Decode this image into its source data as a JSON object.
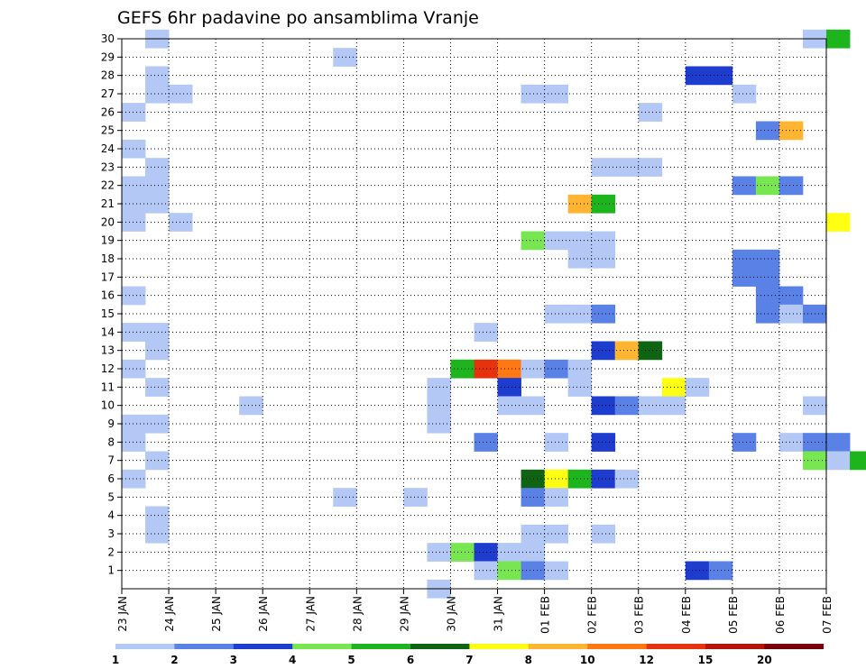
{
  "chart_data": {
    "type": "heatmap",
    "title": "GEFS 6hr padavine po ansamblima Vranje",
    "y_range": [
      0,
      30
    ],
    "y_ticks": [
      1,
      2,
      3,
      4,
      5,
      6,
      7,
      8,
      9,
      10,
      11,
      12,
      13,
      14,
      15,
      16,
      17,
      18,
      19,
      20,
      21,
      22,
      23,
      24,
      25,
      26,
      27,
      28,
      29,
      30
    ],
    "x_range_days": [
      0,
      15
    ],
    "x_ticks": [
      "23 JAN",
      "24 JAN",
      "25 JAN",
      "26 JAN",
      "27 JAN",
      "28 JAN",
      "29 JAN",
      "30 JAN",
      "31 JAN",
      "01 FEB",
      "02 FEB",
      "03 FEB",
      "04 FEB",
      "05 FEB",
      "06 FEB",
      "07 FEB"
    ],
    "grid": true,
    "legend_position": "bottom",
    "levels": [
      {
        "label": "1",
        "color": "#b4c8f5"
      },
      {
        "label": "2",
        "color": "#5a82e6"
      },
      {
        "label": "3",
        "color": "#1e3ccd"
      },
      {
        "label": "4",
        "color": "#78e650"
      },
      {
        "label": "5",
        "color": "#1eb41e"
      },
      {
        "label": "6",
        "color": "#0f6414"
      },
      {
        "label": "7",
        "color": "#ffff14"
      },
      {
        "label": "8",
        "color": "#ffb432"
      },
      {
        "label": "10",
        "color": "#ff7814"
      },
      {
        "label": "12",
        "color": "#e6320f"
      },
      {
        "label": "15",
        "color": "#b4140a"
      },
      {
        "label": "20",
        "color": "#78000a"
      }
    ],
    "cells": [
      [
        30,
        1,
        0
      ],
      [
        30,
        29,
        0
      ],
      [
        30,
        30,
        4
      ],
      [
        29,
        9,
        0
      ],
      [
        28,
        24,
        2
      ],
      [
        28,
        25,
        2
      ],
      [
        28,
        1,
        0
      ],
      [
        27,
        1,
        0
      ],
      [
        27,
        2,
        0
      ],
      [
        27,
        17,
        0
      ],
      [
        27,
        18,
        0
      ],
      [
        27,
        26,
        0
      ],
      [
        26,
        0,
        0
      ],
      [
        26,
        22,
        0
      ],
      [
        25,
        27,
        1
      ],
      [
        25,
        28,
        7
      ],
      [
        24,
        0,
        0
      ],
      [
        23,
        1,
        0
      ],
      [
        23,
        20,
        0
      ],
      [
        23,
        21,
        0
      ],
      [
        23,
        22,
        0
      ],
      [
        22,
        0,
        0
      ],
      [
        22,
        1,
        0
      ],
      [
        22,
        26,
        1
      ],
      [
        22,
        27,
        3
      ],
      [
        22,
        28,
        1
      ],
      [
        21,
        0,
        0
      ],
      [
        21,
        1,
        0
      ],
      [
        21,
        19,
        7
      ],
      [
        21,
        20,
        4
      ],
      [
        20,
        0,
        0
      ],
      [
        20,
        2,
        0
      ],
      [
        20,
        30,
        6
      ],
      [
        19,
        17,
        3
      ],
      [
        19,
        18,
        0
      ],
      [
        19,
        19,
        0
      ],
      [
        19,
        20,
        0
      ],
      [
        18,
        19,
        0
      ],
      [
        18,
        20,
        0
      ],
      [
        18,
        26,
        1
      ],
      [
        18,
        27,
        1
      ],
      [
        17,
        26,
        1
      ],
      [
        17,
        27,
        1
      ],
      [
        16,
        0,
        0
      ],
      [
        16,
        27,
        1
      ],
      [
        16,
        28,
        1
      ],
      [
        15,
        18,
        0
      ],
      [
        15,
        19,
        0
      ],
      [
        15,
        20,
        1
      ],
      [
        15,
        27,
        1
      ],
      [
        15,
        28,
        0
      ],
      [
        15,
        29,
        1
      ],
      [
        14,
        0,
        0
      ],
      [
        14,
        1,
        0
      ],
      [
        14,
        15,
        0
      ],
      [
        13,
        1,
        0
      ],
      [
        13,
        20,
        2
      ],
      [
        13,
        21,
        7
      ],
      [
        13,
        22,
        5
      ],
      [
        12,
        0,
        0
      ],
      [
        12,
        14,
        4
      ],
      [
        12,
        15,
        9
      ],
      [
        12,
        16,
        8
      ],
      [
        12,
        17,
        0
      ],
      [
        12,
        18,
        1
      ],
      [
        12,
        19,
        0
      ],
      [
        11,
        1,
        0
      ],
      [
        11,
        13,
        0
      ],
      [
        11,
        16,
        2
      ],
      [
        11,
        19,
        0
      ],
      [
        11,
        23,
        6
      ],
      [
        11,
        24,
        0
      ],
      [
        10,
        5,
        0
      ],
      [
        10,
        13,
        0
      ],
      [
        10,
        16,
        0
      ],
      [
        10,
        17,
        0
      ],
      [
        10,
        20,
        2
      ],
      [
        10,
        21,
        1
      ],
      [
        10,
        22,
        0
      ],
      [
        10,
        23,
        0
      ],
      [
        10,
        29,
        0
      ],
      [
        9,
        0,
        0
      ],
      [
        9,
        1,
        0
      ],
      [
        9,
        13,
        0
      ],
      [
        8,
        0,
        0
      ],
      [
        8,
        15,
        1
      ],
      [
        8,
        18,
        0
      ],
      [
        8,
        20,
        2
      ],
      [
        8,
        26,
        1
      ],
      [
        8,
        28,
        0
      ],
      [
        8,
        29,
        1
      ],
      [
        8,
        30,
        1
      ],
      [
        7,
        1,
        0
      ],
      [
        7,
        29,
        3
      ],
      [
        7,
        30,
        0
      ],
      [
        7,
        31,
        4
      ],
      [
        6,
        0,
        0
      ],
      [
        6,
        17,
        5
      ],
      [
        6,
        18,
        6
      ],
      [
        6,
        19,
        4
      ],
      [
        6,
        20,
        2
      ],
      [
        6,
        21,
        0
      ],
      [
        5,
        9,
        0
      ],
      [
        5,
        12,
        0
      ],
      [
        5,
        17,
        1
      ],
      [
        5,
        18,
        0
      ],
      [
        4,
        1,
        0
      ],
      [
        3,
        1,
        0
      ],
      [
        3,
        17,
        0
      ],
      [
        3,
        18,
        0
      ],
      [
        3,
        20,
        0
      ],
      [
        2,
        13,
        0
      ],
      [
        2,
        14,
        3
      ],
      [
        2,
        15,
        2
      ],
      [
        2,
        16,
        0
      ],
      [
        2,
        17,
        0
      ],
      [
        1,
        15,
        0
      ],
      [
        1,
        16,
        3
      ],
      [
        1,
        17,
        1
      ],
      [
        1,
        18,
        0
      ],
      [
        1,
        24,
        2
      ],
      [
        1,
        25,
        1
      ],
      [
        0,
        13,
        0
      ]
    ]
  }
}
